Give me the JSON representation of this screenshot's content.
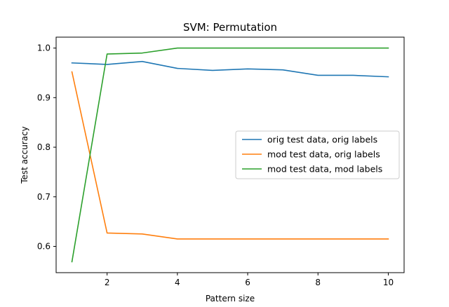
{
  "chart_data": {
    "type": "line",
    "title": "SVM: Permutation",
    "xlabel": "Pattern size",
    "ylabel": "Test accuracy",
    "x": [
      1,
      2,
      3,
      4,
      5,
      6,
      7,
      8,
      9,
      10
    ],
    "xlim": [
      0.55,
      10.45
    ],
    "ylim": [
      0.547,
      1.022
    ],
    "xticks": [
      2,
      4,
      6,
      8,
      10
    ],
    "xtick_labels": [
      "2",
      "4",
      "6",
      "8",
      "10"
    ],
    "yticks": [
      0.6,
      0.7,
      0.8,
      0.9,
      1.0
    ],
    "ytick_labels": [
      "0.6",
      "0.7",
      "0.8",
      "0.9",
      "1.0"
    ],
    "grid": false,
    "legend_position": "center-right",
    "series": [
      {
        "name": "orig test data, orig labels",
        "color": "#1f77b4",
        "values": [
          0.97,
          0.967,
          0.973,
          0.959,
          0.955,
          0.958,
          0.956,
          0.945,
          0.945,
          0.942
        ]
      },
      {
        "name": "mod test data, orig labels",
        "color": "#ff7f0e",
        "values": [
          0.952,
          0.627,
          0.625,
          0.615,
          0.615,
          0.615,
          0.615,
          0.615,
          0.615,
          0.615
        ]
      },
      {
        "name": "mod test data, mod labels",
        "color": "#2ca02c",
        "values": [
          0.569,
          0.988,
          0.99,
          1.0,
          1.0,
          1.0,
          1.0,
          1.0,
          1.0,
          1.0
        ]
      }
    ]
  }
}
